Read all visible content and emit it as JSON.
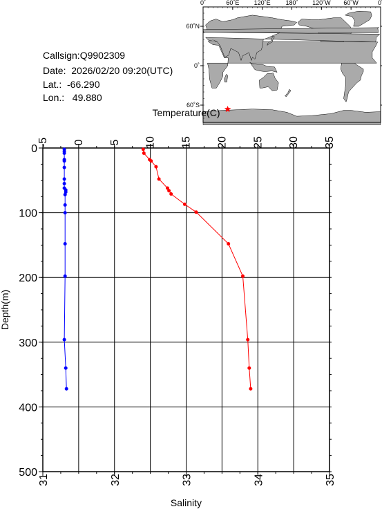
{
  "info": {
    "callsign": "Callsign:Q9902309",
    "date": "Date:  2026/02/20 09:20(UTC)",
    "lat": "Lat.:  -66.290",
    "lon": "Lon.:   49.880"
  },
  "map": {
    "top_labels": [
      "0˚",
      "60˚E",
      "120˚E",
      "180˚",
      "120˚W",
      "60˚W",
      "0˚"
    ],
    "lat_labels": [
      "60˚N",
      "0˚",
      "60˚S"
    ],
    "colors": {
      "land": "#aaaaaa",
      "ocean": "#ffffff",
      "marker": "#ff0000"
    },
    "marker": {
      "lat": -66.29,
      "lon": 49.88
    }
  },
  "chart_data": {
    "type": "line",
    "ylabel": "Depth(m)",
    "y_ticks": [
      "0",
      "100",
      "200",
      "300",
      "400",
      "500"
    ],
    "ylim": [
      0,
      500
    ],
    "y_inverted": true,
    "top_axis": {
      "label": "Temperature(C)",
      "range": [
        -5,
        35
      ],
      "ticks": [
        "-5",
        "0",
        "5",
        "10",
        "15",
        "20",
        "25",
        "30",
        "35"
      ]
    },
    "bottom_axis": {
      "label": "Salinity",
      "range": [
        31,
        35
      ],
      "ticks": [
        "31",
        "32",
        "33",
        "34",
        "35"
      ]
    },
    "grid": true,
    "series": [
      {
        "axis": "bottom",
        "color": "#0000ff",
        "points": [
          [
            31.3,
            2
          ],
          [
            31.3,
            5
          ],
          [
            31.3,
            8
          ],
          [
            31.3,
            18
          ],
          [
            31.3,
            20
          ],
          [
            31.3,
            30
          ],
          [
            31.3,
            48
          ],
          [
            31.3,
            55
          ],
          [
            31.3,
            62
          ],
          [
            31.32,
            65
          ],
          [
            31.32,
            68
          ],
          [
            31.31,
            72
          ],
          [
            31.31,
            88
          ],
          [
            31.31,
            100
          ],
          [
            31.31,
            148
          ],
          [
            31.31,
            198
          ],
          [
            31.3,
            296
          ],
          [
            31.32,
            340
          ],
          [
            31.33,
            372
          ]
        ]
      },
      {
        "axis": "top",
        "color": "#ff0000",
        "points": [
          [
            9.0,
            2
          ],
          [
            9.1,
            8
          ],
          [
            9.9,
            18
          ],
          [
            10.1,
            20
          ],
          [
            10.8,
            29
          ],
          [
            11.2,
            48
          ],
          [
            12.4,
            62
          ],
          [
            12.6,
            66
          ],
          [
            12.9,
            71
          ],
          [
            14.8,
            87
          ],
          [
            16.4,
            99
          ],
          [
            20.9,
            148
          ],
          [
            22.9,
            198
          ],
          [
            23.6,
            296
          ],
          [
            23.8,
            340
          ],
          [
            24.0,
            372
          ]
        ]
      }
    ]
  }
}
